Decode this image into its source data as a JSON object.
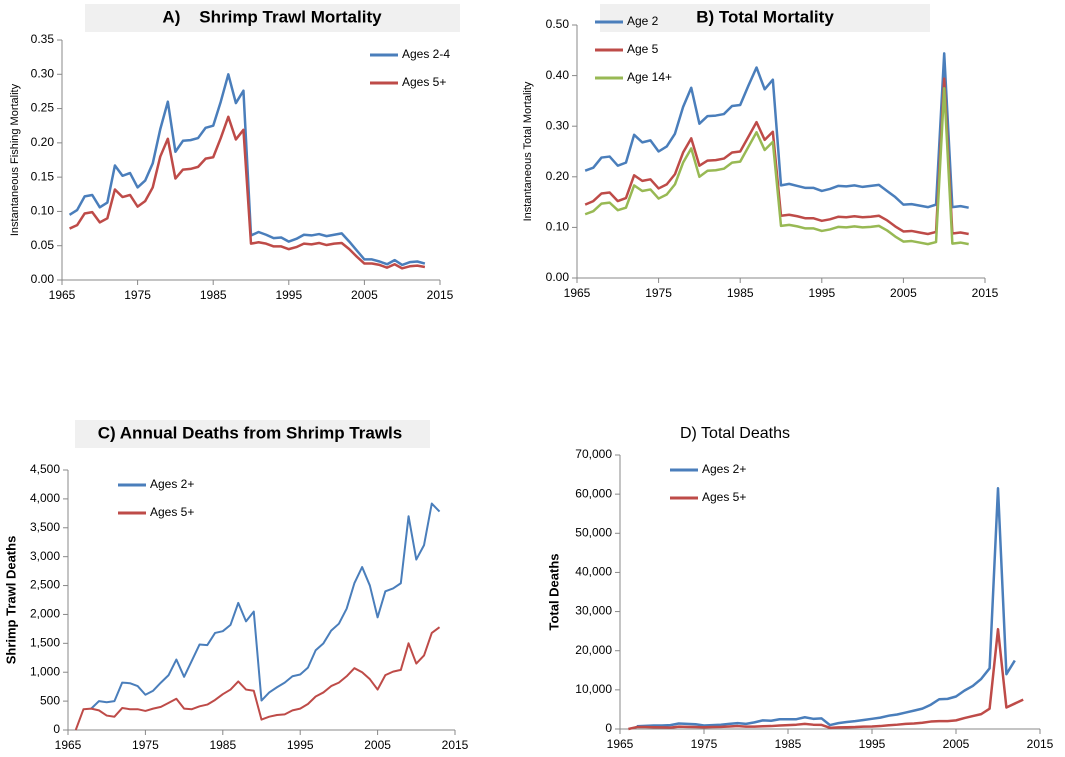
{
  "chart_data": [
    {
      "type": "line",
      "title": "A)    Shrimp Trawl Mortality",
      "y_label": "Instantaneous Fishing Mortality",
      "x": [
        1966,
        1967,
        1968,
        1969,
        1970,
        1971,
        1972,
        1973,
        1974,
        1975,
        1976,
        1977,
        1978,
        1979,
        1980,
        1981,
        1982,
        1983,
        1984,
        1985,
        1986,
        1987,
        1988,
        1989,
        1990,
        1991,
        1992,
        1993,
        1994,
        1995,
        1996,
        1997,
        1998,
        1999,
        2000,
        2001,
        2002,
        2003,
        2004,
        2005,
        2006,
        2007,
        2008,
        2009,
        2010,
        2011,
        2012,
        2013
      ],
      "series": [
        {
          "name": "Ages 2-4",
          "color": "#4a7ebb",
          "values": [
            0.095,
            0.102,
            0.122,
            0.124,
            0.106,
            0.113,
            0.167,
            0.152,
            0.156,
            0.135,
            0.145,
            0.17,
            0.22,
            0.26,
            0.187,
            0.203,
            0.204,
            0.207,
            0.222,
            0.225,
            0.26,
            0.3,
            0.258,
            0.276,
            0.065,
            0.07,
            0.066,
            0.061,
            0.062,
            0.056,
            0.06,
            0.066,
            0.065,
            0.067,
            0.064,
            0.066,
            0.068,
            0.056,
            0.043,
            0.03,
            0.03,
            0.027,
            0.023,
            0.029,
            0.022,
            0.026,
            0.027,
            0.024
          ]
        },
        {
          "name": "Ages 5+",
          "color": "#be4b48",
          "values": [
            0.075,
            0.08,
            0.097,
            0.099,
            0.084,
            0.09,
            0.132,
            0.121,
            0.124,
            0.107,
            0.115,
            0.135,
            0.18,
            0.206,
            0.148,
            0.161,
            0.162,
            0.165,
            0.177,
            0.179,
            0.207,
            0.238,
            0.205,
            0.219,
            0.053,
            0.055,
            0.053,
            0.049,
            0.049,
            0.045,
            0.048,
            0.053,
            0.052,
            0.054,
            0.051,
            0.053,
            0.054,
            0.045,
            0.034,
            0.024,
            0.024,
            0.022,
            0.018,
            0.023,
            0.017,
            0.02,
            0.021,
            0.019
          ]
        }
      ],
      "xlim": [
        1965,
        2015
      ],
      "xticks": [
        1965,
        1975,
        1985,
        1995,
        2005,
        2015
      ],
      "ylim": [
        0,
        0.35
      ],
      "yticks": [
        {
          "value": 0,
          "label": "0.00"
        },
        {
          "value": 0.05,
          "label": "0.05"
        },
        {
          "value": 0.1,
          "label": "0.10"
        },
        {
          "value": 0.15,
          "label": "0.15"
        },
        {
          "value": 0.2,
          "label": "0.20"
        },
        {
          "value": 0.25,
          "label": "0.25"
        },
        {
          "value": 0.3,
          "label": "0.30"
        },
        {
          "value": 0.35,
          "label": "0.35"
        }
      ],
      "legend": "upper right"
    },
    {
      "type": "line",
      "title": "B) Total Mortality",
      "y_label": "Instantaneous Total Mortality",
      "x": [
        1966,
        1967,
        1968,
        1969,
        1970,
        1971,
        1972,
        1973,
        1974,
        1975,
        1976,
        1977,
        1978,
        1979,
        1980,
        1981,
        1982,
        1983,
        1984,
        1985,
        1986,
        1987,
        1988,
        1989,
        1990,
        1991,
        1992,
        1993,
        1994,
        1995,
        1996,
        1997,
        1998,
        1999,
        2000,
        2001,
        2002,
        2003,
        2004,
        2005,
        2006,
        2007,
        2008,
        2009,
        2010,
        2011,
        2012,
        2013
      ],
      "series": [
        {
          "name": "Age 2",
          "color": "#4a7ebb",
          "values": [
            0.212,
            0.218,
            0.238,
            0.24,
            0.222,
            0.228,
            0.283,
            0.268,
            0.272,
            0.25,
            0.26,
            0.285,
            0.338,
            0.376,
            0.305,
            0.32,
            0.321,
            0.324,
            0.34,
            0.342,
            0.38,
            0.416,
            0.373,
            0.392,
            0.183,
            0.186,
            0.182,
            0.178,
            0.178,
            0.172,
            0.176,
            0.182,
            0.181,
            0.183,
            0.18,
            0.182,
            0.184,
            0.172,
            0.16,
            0.145,
            0.146,
            0.143,
            0.14,
            0.145,
            0.444,
            0.14,
            0.142,
            0.139
          ]
        },
        {
          "name": "Age 5",
          "color": "#be4b48",
          "values": [
            0.145,
            0.152,
            0.167,
            0.169,
            0.152,
            0.158,
            0.203,
            0.192,
            0.195,
            0.177,
            0.185,
            0.205,
            0.248,
            0.276,
            0.222,
            0.232,
            0.233,
            0.236,
            0.248,
            0.25,
            0.279,
            0.308,
            0.273,
            0.289,
            0.123,
            0.125,
            0.122,
            0.118,
            0.118,
            0.113,
            0.116,
            0.121,
            0.12,
            0.122,
            0.12,
            0.121,
            0.123,
            0.114,
            0.102,
            0.092,
            0.093,
            0.09,
            0.087,
            0.091,
            0.394,
            0.088,
            0.09,
            0.087
          ]
        },
        {
          "name": "Age 14+",
          "color": "#98b954",
          "values": [
            0.126,
            0.132,
            0.147,
            0.149,
            0.134,
            0.139,
            0.183,
            0.172,
            0.175,
            0.157,
            0.165,
            0.185,
            0.228,
            0.256,
            0.2,
            0.212,
            0.213,
            0.216,
            0.228,
            0.23,
            0.259,
            0.288,
            0.253,
            0.269,
            0.103,
            0.105,
            0.102,
            0.098,
            0.098,
            0.093,
            0.096,
            0.101,
            0.1,
            0.102,
            0.1,
            0.101,
            0.103,
            0.094,
            0.082,
            0.072,
            0.073,
            0.07,
            0.067,
            0.071,
            0.375,
            0.068,
            0.07,
            0.067
          ]
        }
      ],
      "xlim": [
        1965,
        2015
      ],
      "xticks": [
        1965,
        1975,
        1985,
        1995,
        2005,
        2015
      ],
      "ylim": [
        0,
        0.5
      ],
      "yticks": [
        {
          "value": 0,
          "label": "0.00"
        },
        {
          "value": 0.1,
          "label": "0.10"
        },
        {
          "value": 0.2,
          "label": "0.20"
        },
        {
          "value": 0.3,
          "label": "0.30"
        },
        {
          "value": 0.4,
          "label": "0.40"
        },
        {
          "value": 0.5,
          "label": "0.50"
        }
      ],
      "legend": "upper left"
    },
    {
      "type": "line",
      "title": "C) Annual Deaths from Shrimp Trawls",
      "y_label": "Shrimp Trawl Deaths",
      "x": [
        1966,
        1967,
        1968,
        1969,
        1970,
        1971,
        1972,
        1973,
        1974,
        1975,
        1976,
        1977,
        1978,
        1979,
        1980,
        1981,
        1982,
        1983,
        1984,
        1985,
        1986,
        1987,
        1988,
        1989,
        1990,
        1991,
        1992,
        1993,
        1994,
        1995,
        1996,
        1997,
        1998,
        1999,
        2000,
        2001,
        2002,
        2003,
        2004,
        2005,
        2006,
        2007,
        2008,
        2009,
        2010,
        2011,
        2012,
        2013
      ],
      "series": [
        {
          "name": "Ages 2+",
          "color": "#4a7ebb",
          "values": [
            null,
            null,
            370,
            500,
            480,
            500,
            820,
            810,
            760,
            610,
            680,
            820,
            950,
            1220,
            920,
            1200,
            1480,
            1470,
            1680,
            1710,
            1820,
            2200,
            1880,
            2050,
            510,
            650,
            740,
            820,
            930,
            960,
            1080,
            1380,
            1500,
            1720,
            1840,
            2100,
            2540,
            2820,
            2500,
            1950,
            2400,
            2450,
            2540,
            3700,
            2950,
            3200,
            3920,
            3780
          ]
        },
        {
          "name": "Ages 5+",
          "color": "#be4b48",
          "values": [
            0,
            360,
            370,
            340,
            250,
            230,
            380,
            360,
            360,
            330,
            370,
            400,
            470,
            540,
            370,
            360,
            410,
            440,
            520,
            620,
            700,
            840,
            700,
            680,
            180,
            230,
            260,
            270,
            340,
            370,
            450,
            580,
            650,
            760,
            820,
            930,
            1070,
            1000,
            880,
            700,
            950,
            1010,
            1040,
            1500,
            1150,
            1290,
            1680,
            1780
          ]
        }
      ],
      "xlim": [
        1965,
        2015
      ],
      "xticks": [
        1965,
        1975,
        1985,
        1995,
        2005,
        2015
      ],
      "ylim": [
        0,
        4500
      ],
      "yticks": [
        0,
        500,
        {
          "value": 1000,
          "label": "1,000"
        },
        {
          "value": 1500,
          "label": "1,500"
        },
        {
          "value": 2000,
          "label": "2,000"
        },
        {
          "value": 2500,
          "label": "2,500"
        },
        {
          "value": 3000,
          "label": "3,000"
        },
        {
          "value": 3500,
          "label": "3,500"
        },
        {
          "value": 4000,
          "label": "4,000"
        },
        {
          "value": 4500,
          "label": "4,500"
        }
      ],
      "legend": "upper left"
    },
    {
      "type": "line",
      "title": "D) Total Deaths",
      "y_label": "Total Deaths",
      "x": [
        1966,
        1967,
        1968,
        1969,
        1970,
        1971,
        1972,
        1973,
        1974,
        1975,
        1976,
        1977,
        1978,
        1979,
        1980,
        1981,
        1982,
        1983,
        1984,
        1985,
        1986,
        1987,
        1988,
        1989,
        1990,
        1991,
        1992,
        1993,
        1994,
        1995,
        1996,
        1997,
        1998,
        1999,
        2000,
        2001,
        2002,
        2003,
        2004,
        2005,
        2006,
        2007,
        2008,
        2009,
        2010,
        2011,
        2012,
        2013
      ],
      "series": [
        {
          "name": "Ages 2+",
          "color": "#4a7ebb",
          "values": [
            null,
            700,
            800,
            900,
            900,
            1000,
            1400,
            1300,
            1200,
            900,
            1000,
            1100,
            1300,
            1500,
            1300,
            1700,
            2200,
            2100,
            2500,
            2500,
            2500,
            3000,
            2600,
            2700,
            1000,
            1500,
            1800,
            2000,
            2300,
            2600,
            2900,
            3400,
            3700,
            4200,
            4700,
            5200,
            6200,
            7600,
            7700,
            8300,
            9800,
            11000,
            12800,
            15500,
            61500,
            14000,
            17500,
            null
          ]
        },
        {
          "name": "Ages 5+",
          "color": "#be4b48",
          "values": [
            0,
            500,
            500,
            450,
            400,
            350,
            600,
            550,
            500,
            450,
            500,
            550,
            650,
            750,
            600,
            600,
            700,
            750,
            900,
            1000,
            1100,
            1300,
            1100,
            1050,
            300,
            400,
            450,
            500,
            600,
            650,
            750,
            950,
            1100,
            1300,
            1400,
            1600,
            1900,
            2000,
            2000,
            2200,
            2800,
            3300,
            3800,
            5200,
            25500,
            5500,
            6500,
            7500
          ]
        }
      ],
      "xlim": [
        1965,
        2015
      ],
      "xticks": [
        1965,
        1975,
        1985,
        1995,
        2005,
        2015
      ],
      "ylim": [
        0,
        70000
      ],
      "yticks": [
        0,
        {
          "value": 10000,
          "label": "10,000"
        },
        {
          "value": 20000,
          "label": "20,000"
        },
        {
          "value": 30000,
          "label": "30,000"
        },
        {
          "value": 40000,
          "label": "40,000"
        },
        {
          "value": 50000,
          "label": "50,000"
        },
        {
          "value": 60000,
          "label": "60,000"
        },
        {
          "value": 70000,
          "label": "70,000"
        }
      ],
      "legend": "upper left"
    }
  ]
}
